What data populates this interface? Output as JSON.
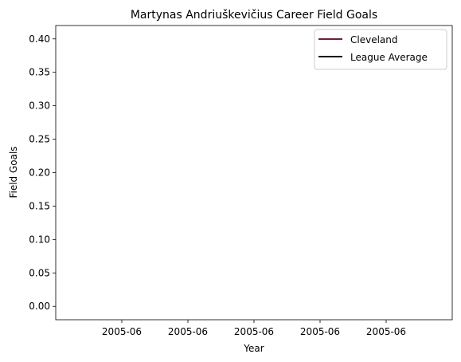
{
  "chart_data": {
    "type": "line",
    "title": "Martynas Andriuškevičius Career Field Goals",
    "xlabel": "Year",
    "ylabel": "Field Goals",
    "x_tick_labels": [
      "2005-06",
      "2005-06",
      "2005-06",
      "2005-06",
      "2005-06"
    ],
    "y_ticks": [
      0.0,
      0.05,
      0.1,
      0.15,
      0.2,
      0.25,
      0.3,
      0.35,
      0.4
    ],
    "y_tick_labels": [
      "0.00",
      "0.05",
      "0.10",
      "0.15",
      "0.20",
      "0.25",
      "0.30",
      "0.35",
      "0.40"
    ],
    "ylim": [
      -0.02,
      0.42
    ],
    "grid": false,
    "legend_position": "top-right",
    "series": [
      {
        "name": "Cleveland",
        "color": "#6a2139",
        "values": []
      },
      {
        "name": "League Average",
        "color": "#000000",
        "values": []
      }
    ]
  }
}
